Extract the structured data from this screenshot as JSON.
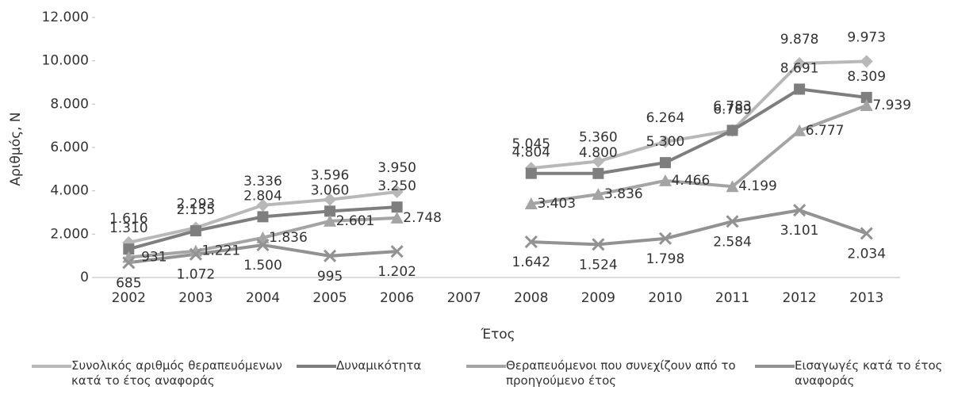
{
  "chart_data": {
    "type": "line",
    "y_label": "Αριθμός, Ν",
    "x_label": "Έτος",
    "categories": [
      "2002",
      "2003",
      "2004",
      "2005",
      "2006",
      "2007",
      "2008",
      "2009",
      "2010",
      "2011",
      "2012",
      "2013"
    ],
    "ylim": [
      0,
      12000
    ],
    "yticks": [
      0,
      {
        "value": 2000,
        "label": "2.000"
      },
      {
        "value": 4000,
        "label": "4.000"
      },
      {
        "value": 6000,
        "label": "6.000"
      },
      {
        "value": 8000,
        "label": "8.000"
      },
      {
        "value": 10000,
        "label": "10.000"
      },
      {
        "value": 12000,
        "label": "12.000"
      }
    ],
    "legend": "bottom",
    "series": [
      {
        "name": "Συνολικός αριθμός θεραπευόμενων κατά το έτος αναφοράς",
        "color": "#b8b8b8",
        "marker": "diamond",
        "values": [
          1616,
          2293,
          3336,
          3596,
          3950,
          null,
          5045,
          5360,
          6264,
          6783,
          9878,
          9973
        ],
        "value_labels": [
          "1.616",
          "2.293",
          "3.336",
          "3.596",
          "3.950",
          null,
          "5.045",
          "5.360",
          "6.264",
          "6.783",
          "9.878",
          "9.973"
        ]
      },
      {
        "name": "Δυναμικότητα",
        "color": "#7e7e7e",
        "marker": "square",
        "values": [
          1310,
          2155,
          2804,
          3060,
          3250,
          null,
          4804,
          4800,
          5300,
          6789,
          8691,
          8309
        ],
        "value_labels": [
          "1.310",
          "2.155",
          "2.804",
          "3.060",
          "3.250",
          null,
          "4.804",
          "4.800",
          "5.300",
          "6.789",
          "8.691",
          "8.309"
        ]
      },
      {
        "name": "Θεραπευόμενοι που συνεχίζουν από το προηγούμενο έτος",
        "color": "#a4a4a4",
        "marker": "triangle",
        "values": [
          931,
          1221,
          1836,
          2601,
          2748,
          null,
          3403,
          3836,
          4466,
          4199,
          6777,
          7939
        ],
        "value_labels": [
          "931",
          "1.221",
          "1.836",
          "2.601",
          "2.748",
          null,
          "3.403",
          "3.836",
          "4.466",
          "4.199",
          "6.777",
          "7.939"
        ]
      },
      {
        "name": "Εισαγωγές κατά το έτος αναφοράς",
        "color": "#929292",
        "marker": "x",
        "values": [
          685,
          1072,
          1500,
          995,
          1202,
          null,
          1642,
          1524,
          1798,
          2584,
          3101,
          2034
        ],
        "value_labels": [
          "685",
          "1.072",
          "1.500",
          "995",
          "1.202",
          null,
          "1.642",
          "1.524",
          "1.798",
          "2.584",
          "3.101",
          "2.034"
        ]
      }
    ]
  }
}
